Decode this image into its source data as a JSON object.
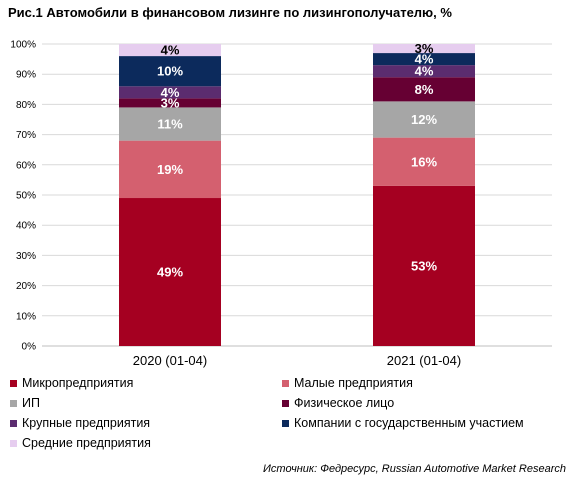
{
  "title": "Рис.1 Автомобили в финансовом лизинге по лизингополучателю, %",
  "source": "Источник: Федресурс, Russian Automotive Market Research",
  "chart_data": {
    "type": "bar",
    "stacked": true,
    "percent": true,
    "categories": [
      "2020 (01-04)",
      "2021 (01-04)"
    ],
    "ylim": [
      0,
      100
    ],
    "yticks": [
      "0%",
      "10%",
      "20%",
      "30%",
      "40%",
      "50%",
      "60%",
      "70%",
      "80%",
      "90%",
      "100%"
    ],
    "grid": true,
    "legend_position": "bottom",
    "series": [
      {
        "name": "Микропредприятия",
        "color": "#a50021",
        "values": [
          49,
          53
        ],
        "labels": [
          "49%",
          "53%"
        ],
        "label_dark": false
      },
      {
        "name": "Малые предприятия",
        "color": "#d4606f",
        "values": [
          19,
          16
        ],
        "labels": [
          "19%",
          "16%"
        ],
        "label_dark": false
      },
      {
        "name": "ИП",
        "color": "#a6a6a6",
        "values": [
          11,
          12
        ],
        "labels": [
          "11%",
          "12%"
        ],
        "label_dark": false
      },
      {
        "name": "Физическое лицо",
        "color": "#660033",
        "values": [
          3,
          8
        ],
        "labels": [
          "3%",
          "8%"
        ],
        "label_dark": false
      },
      {
        "name": "Крупные предприятия",
        "color": "#5b2c6f",
        "values": [
          4,
          4
        ],
        "labels": [
          "4%",
          "4%"
        ],
        "label_dark": false
      },
      {
        "name": "Компании с государственным участием",
        "color": "#0c2a5c",
        "values": [
          10,
          4
        ],
        "labels": [
          "10%",
          "4%"
        ],
        "label_dark": false
      },
      {
        "name": "Средние предприятия",
        "color": "#e6cdef",
        "values": [
          4,
          3
        ],
        "labels": [
          "4%",
          "3%"
        ],
        "label_dark": true
      }
    ]
  }
}
